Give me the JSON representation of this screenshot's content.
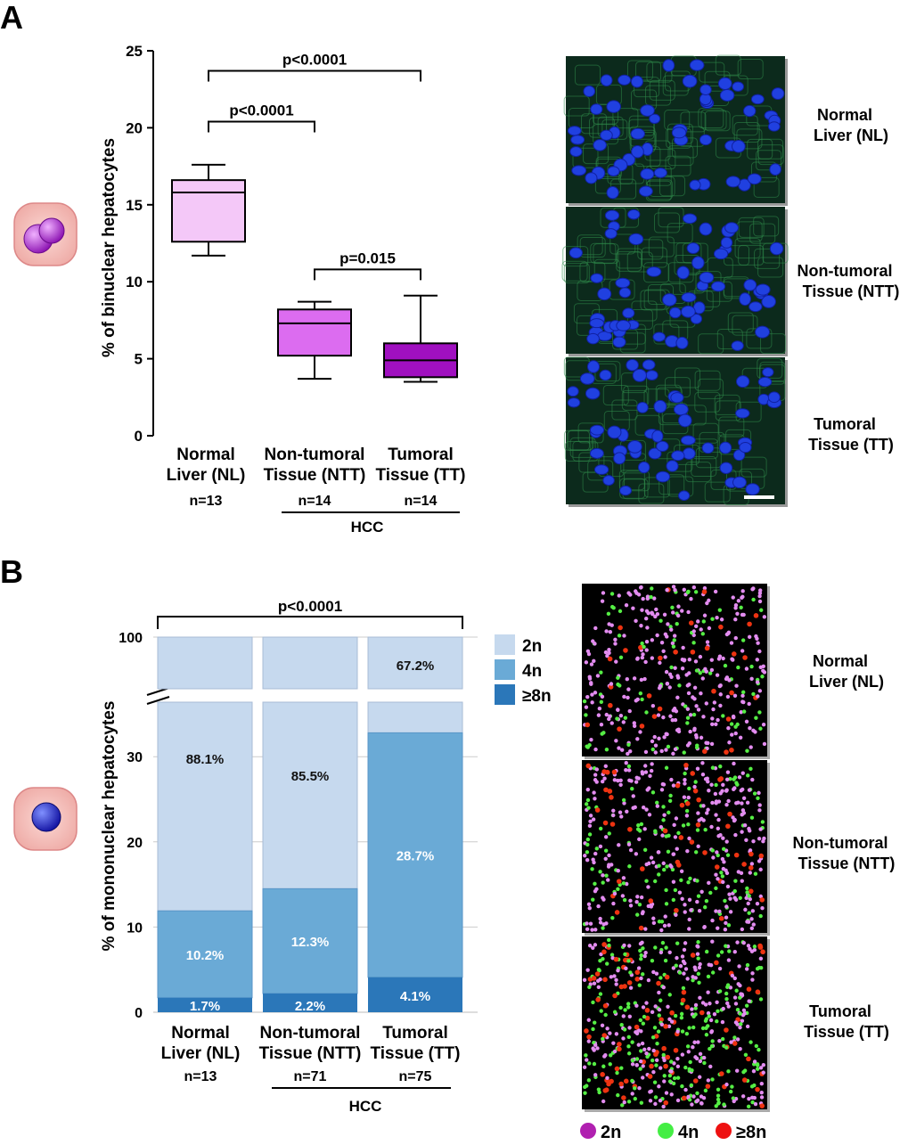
{
  "panels": {
    "A": {
      "letter": "A"
    },
    "B": {
      "letter": "B"
    }
  },
  "chart_data": [
    {
      "type": "box",
      "panel": "A",
      "ylabel": "% of binuclear hepatocytes",
      "ylim": [
        0,
        25
      ],
      "yticks": [
        "0",
        "5",
        "10",
        "15",
        "20",
        "25"
      ],
      "group_label": "HCC",
      "categories": [
        {
          "line1": "Normal",
          "line2": "Liver (NL)",
          "n": "n=13",
          "min": 11.7,
          "q1": 12.6,
          "median": 15.8,
          "q3": 16.6,
          "max": 17.6,
          "color": "#f4c8f8"
        },
        {
          "line1": "Non-tumoral",
          "line2": "Tissue (NTT)",
          "n": "n=14",
          "min": 3.7,
          "q1": 5.2,
          "median": 7.3,
          "q3": 8.2,
          "max": 8.7,
          "color": "#dc6cf0"
        },
        {
          "line1": "Tumoral",
          "line2": "Tissue (TT)",
          "n": "n=14",
          "min": 3.5,
          "q1": 3.8,
          "median": 4.9,
          "q3": 6.0,
          "max": 9.1,
          "color": "#a010c0"
        }
      ],
      "annotations": [
        {
          "text": "p<0.0001",
          "from": 0,
          "to": 2,
          "y": 23.7
        },
        {
          "text": "p<0.0001",
          "from": 0,
          "to": 1,
          "y": 20.4
        },
        {
          "text": "p=0.015",
          "from": 1,
          "to": 2,
          "y": 10.8
        }
      ]
    },
    {
      "type": "stacked-bar",
      "panel": "B",
      "ylabel": "% of mononuclear hepatocytes",
      "yticks": [
        "0",
        "10",
        "20",
        "30",
        "100"
      ],
      "y_axis_break": true,
      "group_label": "HCC",
      "categories": [
        {
          "line1": "Normal",
          "line2": "Liver (NL)",
          "n": "n=13"
        },
        {
          "line1": "Non-tumoral",
          "line2": "Tissue (NTT)",
          "n": "n=71"
        },
        {
          "line1": "Tumoral",
          "line2": "Tissue (TT)",
          "n": "n=75"
        }
      ],
      "series": [
        {
          "name": "≥8n",
          "values": [
            1.7,
            2.2,
            4.1
          ],
          "labels": [
            "1.7%",
            "2.2%",
            "4.1%"
          ],
          "color": "#2b77b9"
        },
        {
          "name": "4n",
          "values": [
            10.2,
            12.3,
            28.7
          ],
          "labels": [
            "10.2%",
            "12.3%",
            "28.7%"
          ],
          "color": "#6aaad6"
        },
        {
          "name": "2n",
          "values": [
            88.1,
            85.5,
            67.2
          ],
          "labels": [
            "88.1%",
            "85.5%",
            "67.2%"
          ],
          "color": "#c6d9ee"
        }
      ],
      "legend_placement": "right",
      "annotations": [
        {
          "text": "p<0.0001",
          "from": 0,
          "to": 2
        }
      ]
    }
  ],
  "images_A": [
    {
      "label1": "Normal",
      "label2": "Liver (NL)"
    },
    {
      "label1": "Non-tumoral",
      "label2": "Tissue (NTT)"
    },
    {
      "label1": "Tumoral",
      "label2": "Tissue (TT)"
    }
  ],
  "images_B": [
    {
      "label1": "Normal",
      "label2": "Liver (NL)"
    },
    {
      "label1": "Non-tumoral",
      "label2": "Tissue (NTT)"
    },
    {
      "label1": "Tumoral",
      "label2": "Tissue (TT)"
    }
  ],
  "dots_legend": [
    {
      "label": "2n",
      "color": "#b020b0"
    },
    {
      "label": "4n",
      "color": "#44ee44"
    },
    {
      "label": "≥8n",
      "color": "#ee1111"
    }
  ]
}
